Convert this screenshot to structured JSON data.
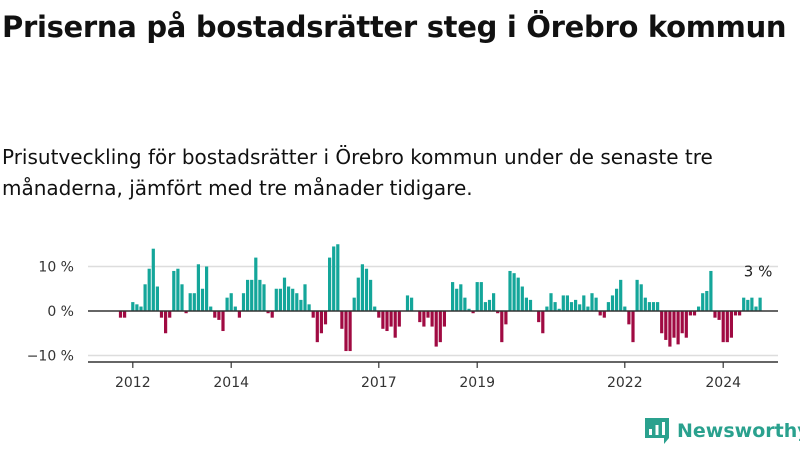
{
  "title": "Priserna på bostadsrätter steg i Örebro kommun",
  "subtitle": "Prisutveckling för bostadsrätter i Örebro kommun under de senaste tre månaderna, jämfört med tre månader tidigare.",
  "brand": {
    "name": "Newsworthy",
    "icon": "newsworthy-logo-icon"
  },
  "colors": {
    "positive": "#14a69a",
    "negative": "#a00a42",
    "axis": "#333333",
    "grid": "#dddddd"
  },
  "chart_data": {
    "type": "bar",
    "title": "Priserna på bostadsrätter steg i Örebro kommun",
    "subtitle": "Prisutveckling för bostadsrätter i Örebro kommun under de senaste tre månaderna, jämfört med tre månader tidigare.",
    "x_start": "2011-10",
    "x_step": "month",
    "x_ticks": [
      {
        "label": "2012",
        "index": 3
      },
      {
        "label": "2014",
        "index": 27
      },
      {
        "label": "2017",
        "index": 63
      },
      {
        "label": "2019",
        "index": 87
      },
      {
        "label": "2022",
        "index": 123
      },
      {
        "label": "2024",
        "index": 147
      }
    ],
    "y_ticks": [
      {
        "value": 10,
        "label": "10 %"
      },
      {
        "value": 0,
        "label": "0 %"
      },
      {
        "value": -10,
        "label": "−10 %"
      }
    ],
    "ylim": [
      -11,
      16
    ],
    "grid": true,
    "last_label": "3 %",
    "values": [
      -1.5,
      -1.5,
      0,
      2,
      1.5,
      1,
      6,
      9.5,
      14,
      5.5,
      -1.5,
      -5,
      -1.5,
      9,
      9.5,
      6,
      -0.5,
      4,
      4,
      10.5,
      5,
      10,
      1,
      -1.5,
      -2,
      -4.5,
      3,
      4,
      1,
      -1.5,
      4,
      7,
      7,
      12,
      7,
      6,
      -0.5,
      -1.5,
      5,
      5,
      7.5,
      5.5,
      5,
      4,
      2.5,
      6,
      1.5,
      -1.5,
      -7,
      -5,
      -3,
      12,
      14.5,
      15,
      -4,
      -9,
      -9,
      3,
      7.5,
      10.5,
      9.5,
      7,
      1,
      -1.5,
      -4,
      -4.5,
      -3.5,
      -6,
      -3.5,
      0,
      3.5,
      3,
      0,
      -2.5,
      -3.5,
      -1.5,
      -3.5,
      -8,
      -7,
      -3.5,
      0,
      6.5,
      5,
      6,
      3,
      0.5,
      -0.5,
      6.5,
      6.5,
      2,
      2.5,
      4,
      -0.5,
      -7,
      -3,
      9,
      8.5,
      7.5,
      5.5,
      3,
      2.5,
      0,
      -2.5,
      -5,
      1,
      4,
      2,
      0.5,
      3.5,
      3.5,
      2,
      2.5,
      1.5,
      3.5,
      1,
      4,
      3,
      -1,
      -1.5,
      2,
      3.5,
      5,
      7,
      1,
      -3,
      -7,
      7,
      6,
      3,
      2,
      2,
      2,
      -5,
      -6.5,
      -8,
      -6,
      -7.5,
      -5,
      -6,
      -1,
      -1,
      1,
      4,
      4.5,
      9,
      -1.5,
      -2,
      -7,
      -7,
      -6,
      -1,
      -1,
      3,
      2.5,
      3,
      1,
      3
    ]
  }
}
